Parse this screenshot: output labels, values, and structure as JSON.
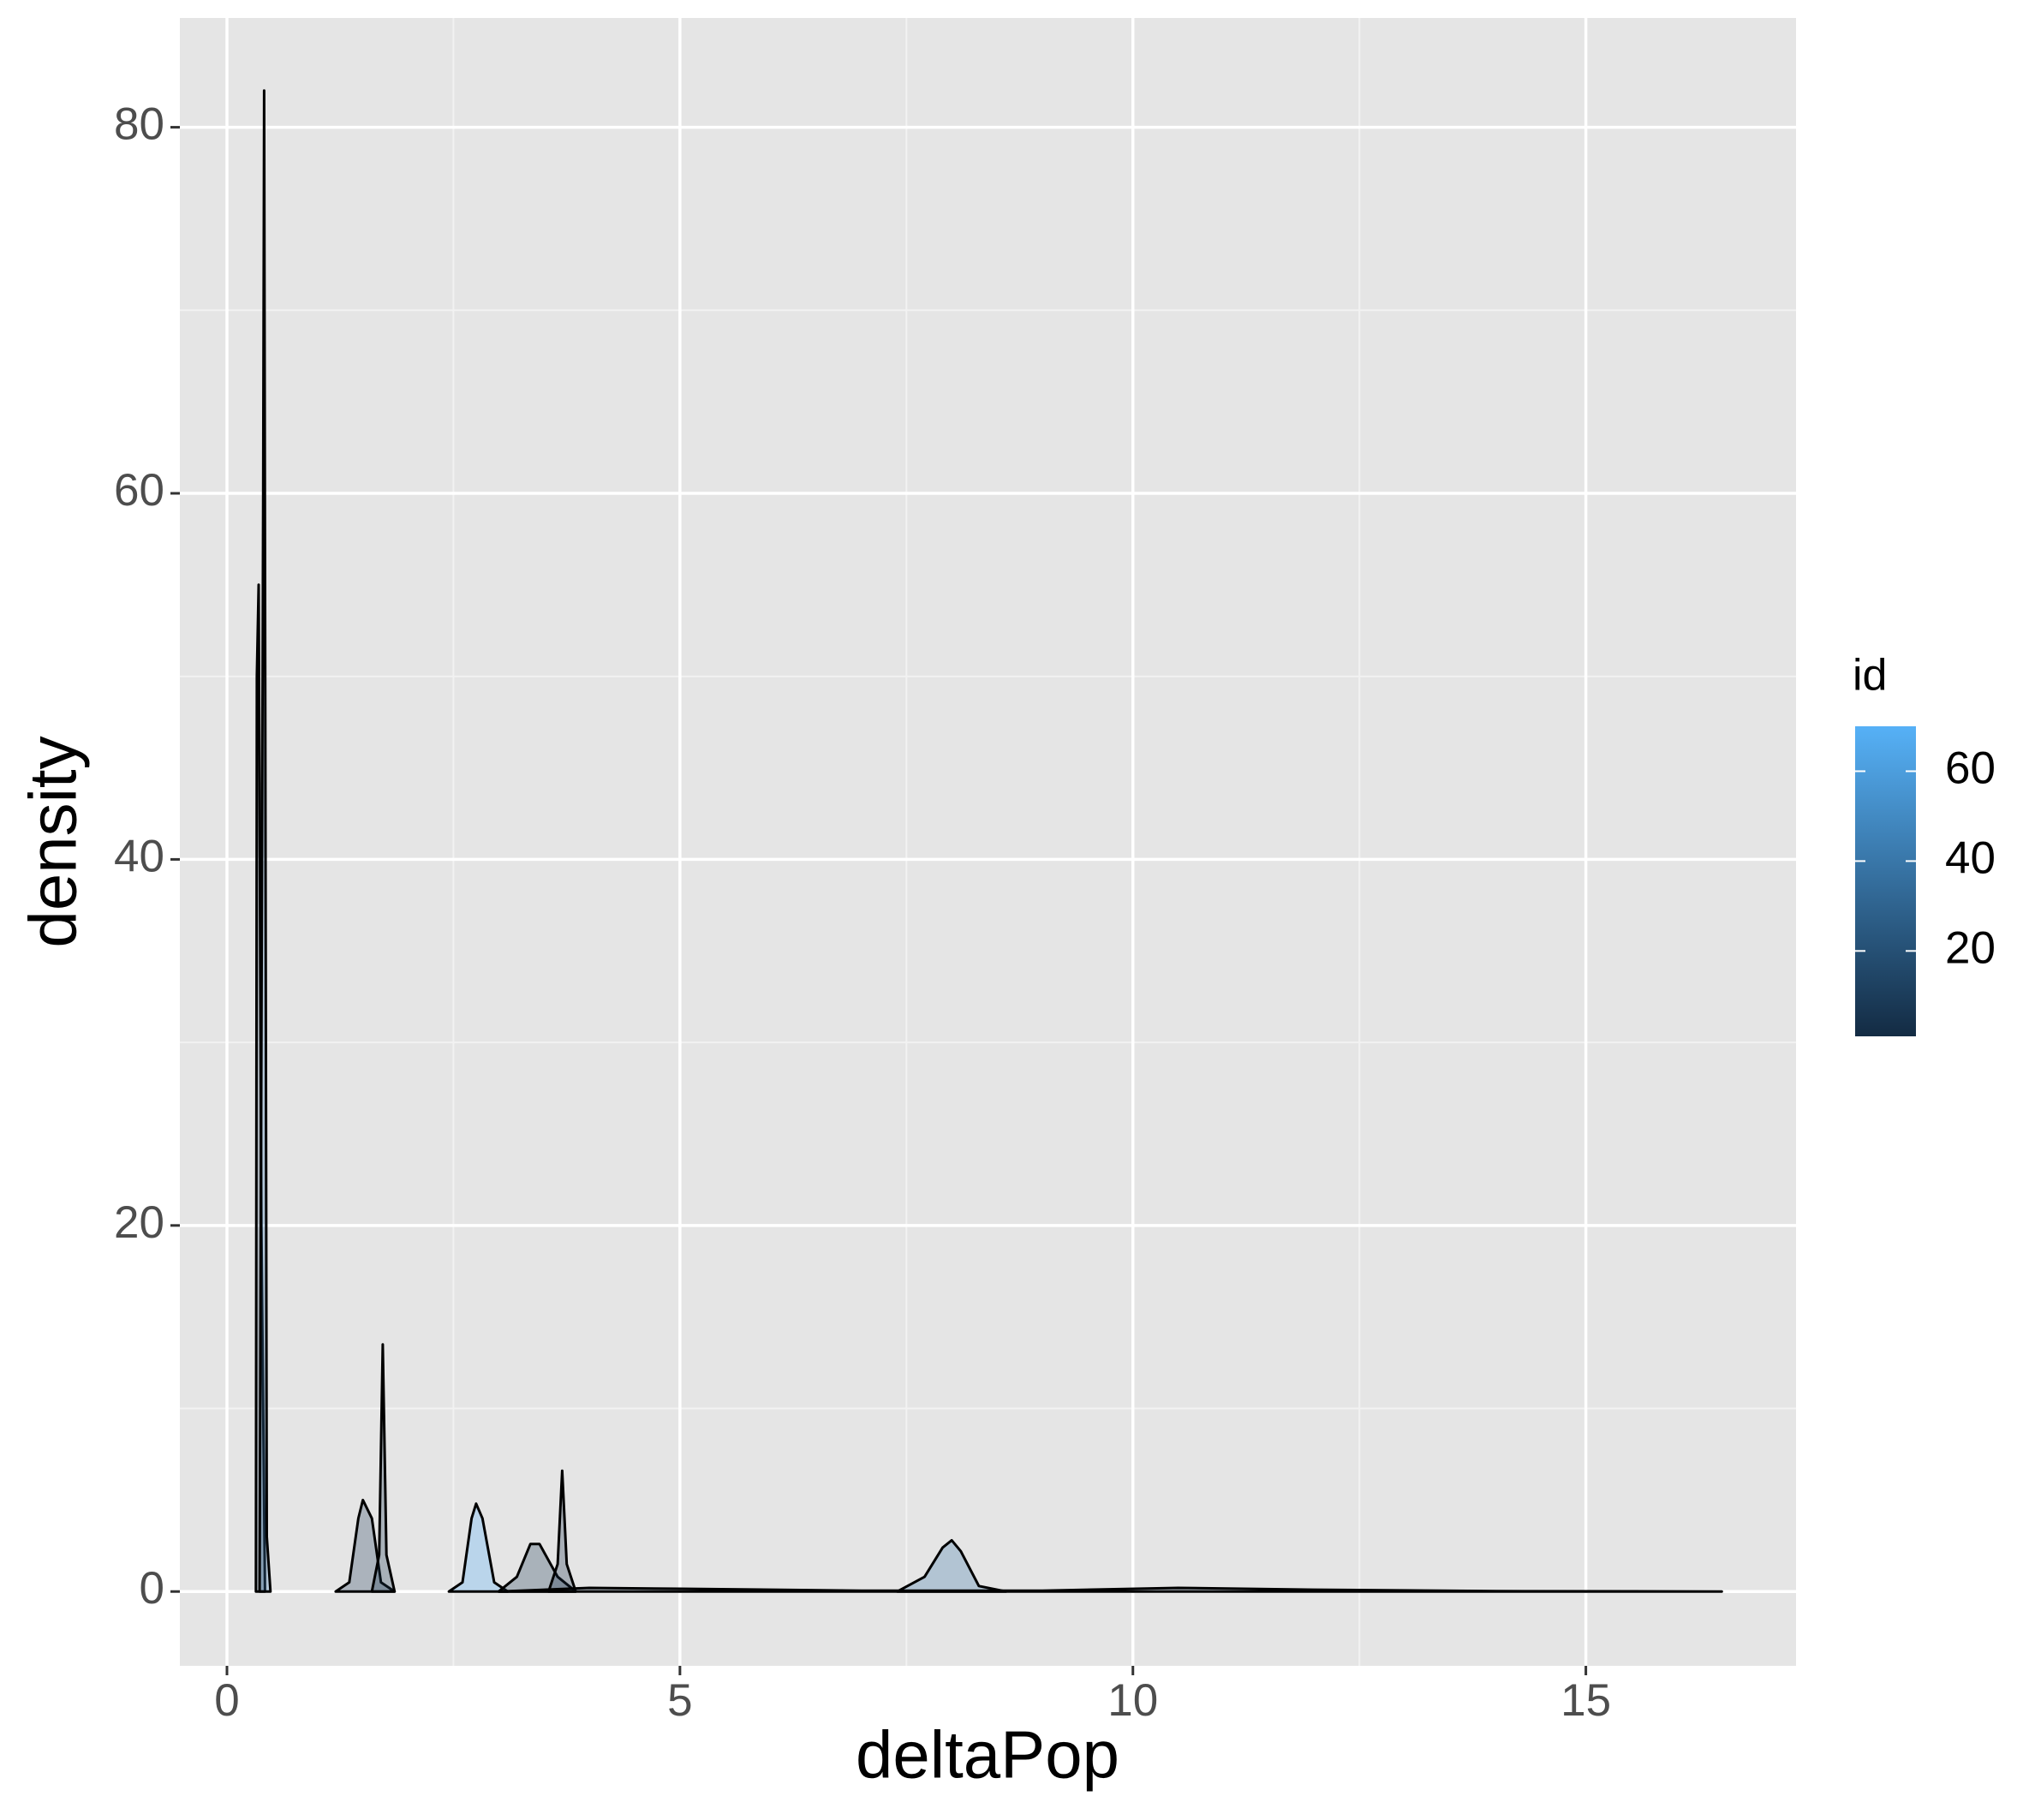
{
  "chart_data": {
    "type": "density",
    "x_label": "deltaPop",
    "y_label": "density",
    "xlim": [
      -0.52,
      17.32
    ],
    "ylim": [
      -4.06,
      85.97
    ],
    "xticks": [
      0,
      5,
      10,
      15
    ],
    "yticks": [
      0,
      20,
      40,
      60,
      80
    ],
    "xminor": [
      2.5,
      7.5,
      12.5
    ],
    "yminor": [
      10,
      30,
      50,
      70
    ],
    "grid": true,
    "alpha": 0.3,
    "legend": {
      "title": "id",
      "ticks": [
        20,
        40,
        60
      ],
      "range": [
        1,
        70
      ],
      "low": "#132B43",
      "high": "#56B1F7",
      "position": "right"
    },
    "series": [
      {
        "color": "#1a3550",
        "x": [
          0.32,
          0.33,
          0.35,
          0.38,
          0.42
        ],
        "values": [
          0,
          50,
          55,
          20,
          0
        ]
      },
      {
        "color": "#3f7fb5",
        "x": [
          0.36,
          0.4,
          0.41,
          0.44,
          0.48
        ],
        "values": [
          0,
          60,
          82,
          3,
          0
        ]
      },
      {
        "color": "#233f5e",
        "x": [
          1.2,
          1.35,
          1.45,
          1.5,
          1.6,
          1.7,
          1.85
        ],
        "values": [
          0,
          0.5,
          4,
          5,
          4,
          0.5,
          0
        ]
      },
      {
        "color": "#1c3852",
        "x": [
          1.6,
          1.68,
          1.72,
          1.76,
          1.85
        ],
        "values": [
          0,
          2,
          13.5,
          2,
          0
        ]
      },
      {
        "color": "#56b1f7",
        "x": [
          2.45,
          2.6,
          2.7,
          2.75,
          2.82,
          2.95,
          3.1
        ],
        "values": [
          0,
          0.5,
          4,
          4.8,
          4,
          0.5,
          0
        ]
      },
      {
        "color": "#1d3a56",
        "x": [
          3.0,
          3.2,
          3.35,
          3.45,
          3.65,
          3.85
        ],
        "values": [
          0,
          0.8,
          2.6,
          2.6,
          0.8,
          0
        ]
      },
      {
        "color": "#172f48",
        "x": [
          3.55,
          3.65,
          3.7,
          3.75,
          3.85
        ],
        "values": [
          0,
          1.5,
          6.6,
          1.5,
          0
        ]
      },
      {
        "color": "#3a76aa",
        "x": [
          7.4,
          7.7,
          7.9,
          8.0,
          8.1,
          8.3,
          8.6
        ],
        "values": [
          0,
          0.8,
          2.4,
          2.8,
          2.2,
          0.3,
          0
        ]
      },
      {
        "color": "#1e3a58",
        "x": [
          3,
          4,
          5,
          7,
          9,
          10.5,
          12,
          14,
          16.5
        ],
        "values": [
          0,
          0.2,
          0.15,
          0.05,
          0.05,
          0.2,
          0.1,
          0.02,
          0
        ]
      }
    ]
  }
}
